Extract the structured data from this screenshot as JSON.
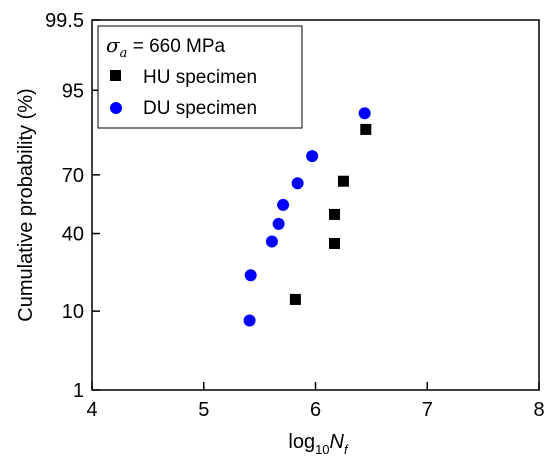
{
  "chart_data": {
    "type": "scatter",
    "title": "",
    "xlabel": {
      "prefix": "log",
      "sub": "10",
      "var": "N",
      "var_sub": "f"
    },
    "ylabel": "Cumulative probability (%)",
    "xlim": [
      4,
      8
    ],
    "x_ticks": [
      "4",
      "5",
      "6",
      "7",
      "8"
    ],
    "y_scale": "probability",
    "y_ticks": [
      "1",
      "10",
      "40",
      "70",
      "95",
      "99.5"
    ],
    "ylim": [
      1,
      99.5
    ],
    "grid": false,
    "legend": {
      "placement": "top-left",
      "annotation": {
        "symbol": "σ",
        "sub": "a",
        "text": " = 660 MPa"
      }
    },
    "series": [
      {
        "name": "HU specimen",
        "marker": "square",
        "color": "#000000",
        "points": [
          {
            "x": 5.82,
            "y": 13
          },
          {
            "x": 6.17,
            "y": 35
          },
          {
            "x": 6.17,
            "y": 50
          },
          {
            "x": 6.25,
            "y": 67
          },
          {
            "x": 6.45,
            "y": 87
          }
        ]
      },
      {
        "name": "DU specimen",
        "marker": "circle",
        "color": "#0000ff",
        "points": [
          {
            "x": 5.41,
            "y": 8
          },
          {
            "x": 5.42,
            "y": 21
          },
          {
            "x": 5.61,
            "y": 36
          },
          {
            "x": 5.67,
            "y": 45
          },
          {
            "x": 5.71,
            "y": 55
          },
          {
            "x": 5.84,
            "y": 66
          },
          {
            "x": 5.97,
            "y": 78
          },
          {
            "x": 6.44,
            "y": 91
          }
        ]
      }
    ]
  }
}
